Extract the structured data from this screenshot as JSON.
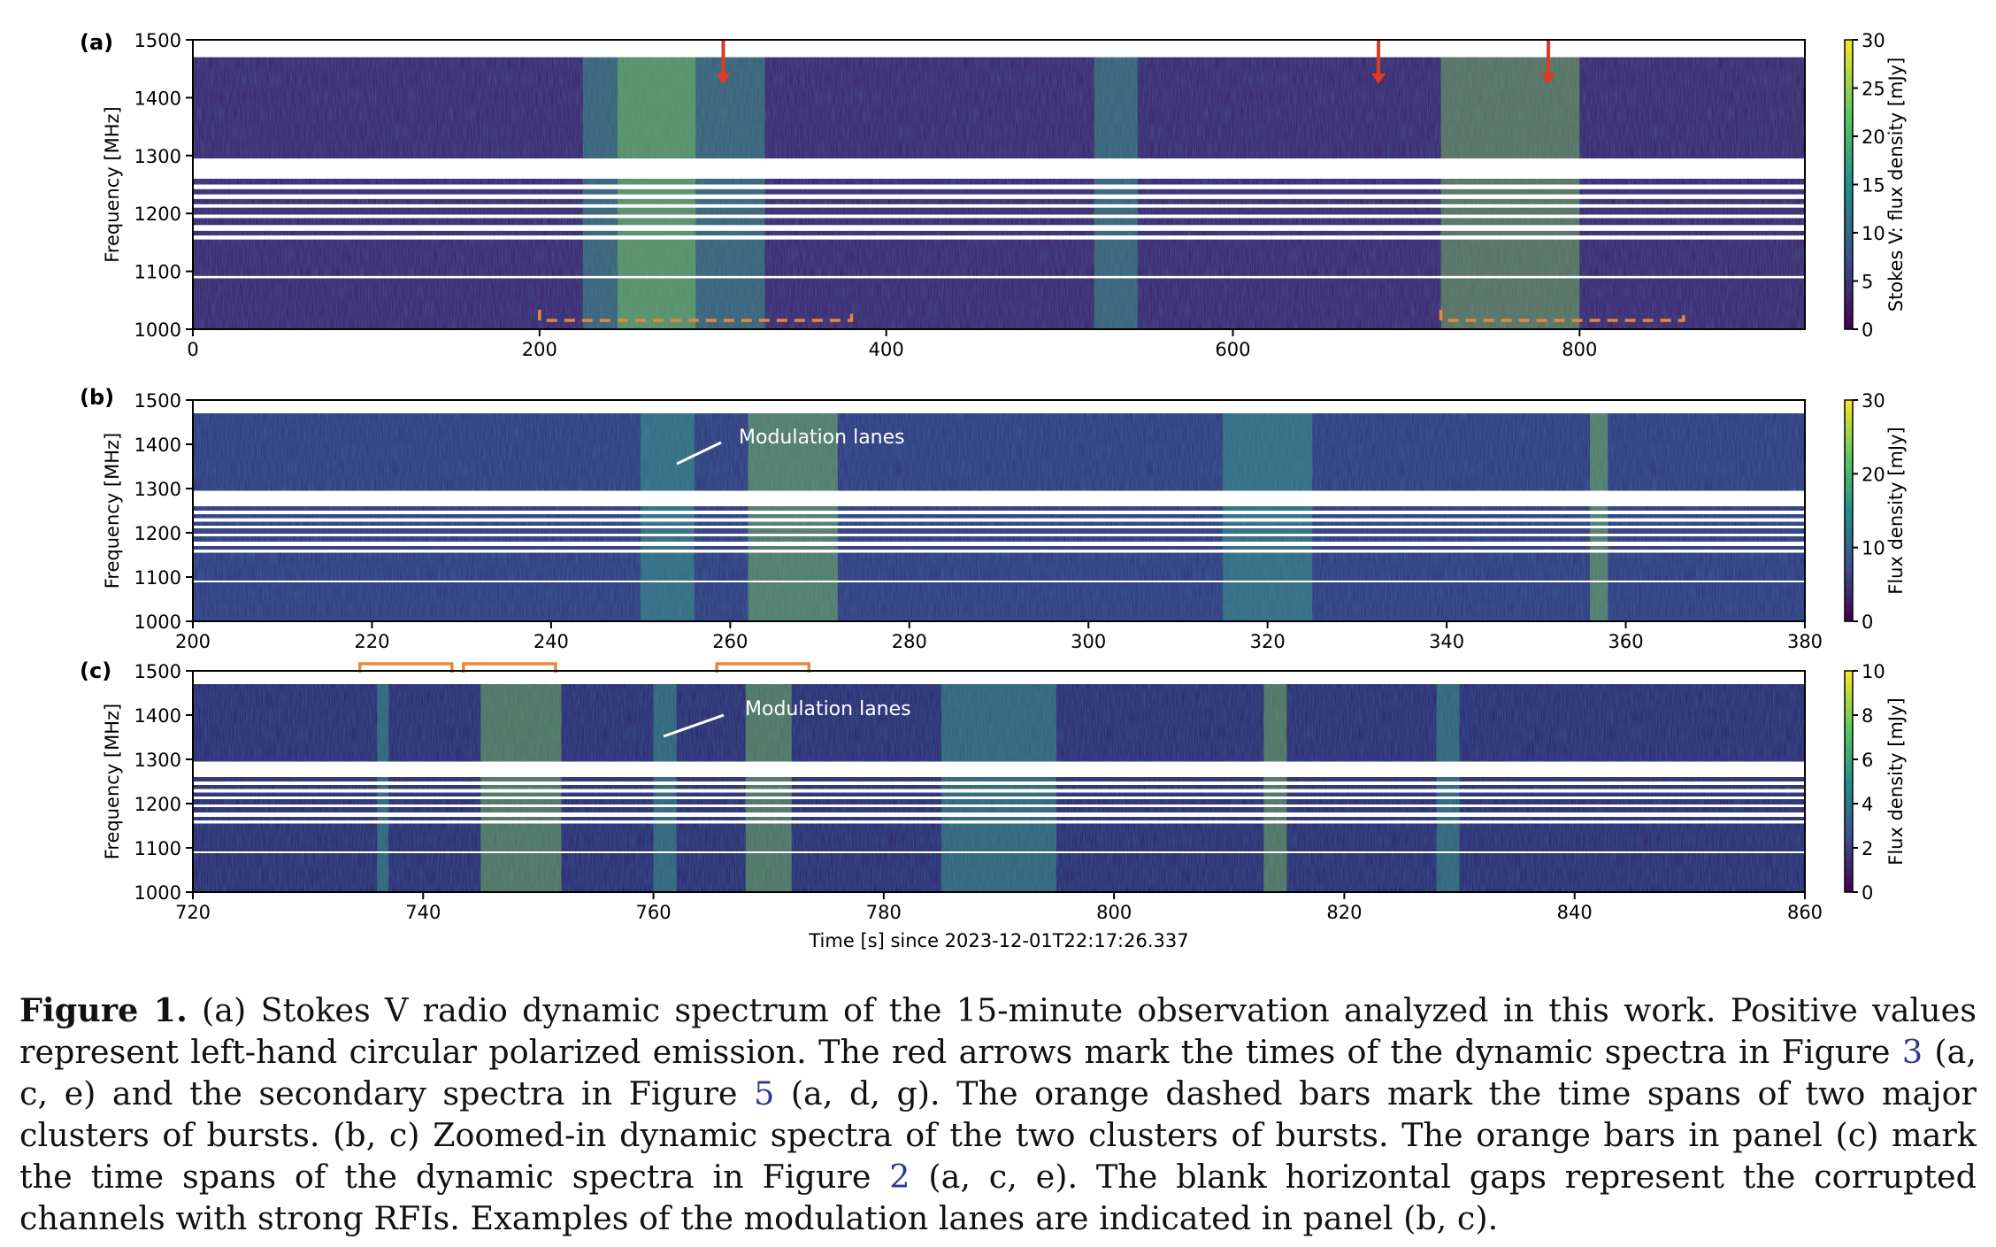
{
  "panels": [
    {
      "label": "(a)",
      "ylabel": "Frequency [MHz]",
      "yticks": [
        "1000",
        "1100",
        "1200",
        "1300",
        "1400",
        "1500"
      ],
      "xticks": [
        "0",
        "200",
        "400",
        "600",
        "800"
      ],
      "xlim": [
        0,
        930
      ],
      "xtick_values": [
        0,
        200,
        400,
        600,
        800
      ],
      "colorbar_label": "Stokes V: flux density [mJy]",
      "colorbar_ticks": [
        "0",
        "5",
        "10",
        "15",
        "20",
        "25",
        "30"
      ],
      "colorbar_values": [
        0,
        5,
        10,
        15,
        20,
        25,
        30
      ],
      "colorbar_max": 30,
      "red_arrows_time_s": [
        306,
        684,
        782
      ],
      "orange_dashed_bars_s": [
        [
          200,
          380
        ],
        [
          720,
          860
        ]
      ],
      "bright_spans_s": [
        [
          225,
          330
        ],
        [
          245,
          290
        ],
        [
          520,
          545
        ],
        [
          720,
          800
        ]
      ]
    },
    {
      "label": "(b)",
      "ylabel": "Frequency [MHz]",
      "yticks": [
        "1000",
        "1100",
        "1200",
        "1300",
        "1400",
        "1500"
      ],
      "xticks": [
        "200",
        "220",
        "240",
        "260",
        "280",
        "300",
        "320",
        "340",
        "360",
        "380"
      ],
      "xlim": [
        200,
        380
      ],
      "xtick_values": [
        200,
        220,
        240,
        260,
        280,
        300,
        320,
        340,
        360,
        380
      ],
      "colorbar_label": "Flux density [mJy]",
      "colorbar_ticks": [
        "0",
        "10",
        "20",
        "30"
      ],
      "colorbar_values": [
        0,
        10,
        20,
        30
      ],
      "colorbar_max": 30,
      "annotation": "Modulation lanes",
      "bright_spans_s": [
        [
          250,
          256
        ],
        [
          262,
          272
        ],
        [
          315,
          325
        ],
        [
          356,
          358
        ]
      ]
    },
    {
      "label": "(c)",
      "ylabel": "Frequency [MHz]",
      "yticks": [
        "1000",
        "1100",
        "1200",
        "1300",
        "1400",
        "1500"
      ],
      "xticks": [
        "720",
        "740",
        "760",
        "780",
        "800",
        "820",
        "840",
        "860"
      ],
      "xlim": [
        720,
        860
      ],
      "xtick_values": [
        720,
        740,
        760,
        780,
        800,
        820,
        840,
        860
      ],
      "colorbar_label": "Flux density [mJy]",
      "colorbar_ticks": [
        "0",
        "2",
        "4",
        "6",
        "8",
        "10"
      ],
      "colorbar_values": [
        0,
        2,
        4,
        6,
        8,
        10
      ],
      "colorbar_max": 10,
      "annotation": "Modulation lanes",
      "orange_bars_s": [
        [
          734.5,
          742.5
        ],
        [
          743.5,
          751.5
        ],
        [
          765.5,
          773.5
        ]
      ],
      "bright_spans_s": [
        [
          736,
          737
        ],
        [
          745,
          752
        ],
        [
          760,
          762
        ],
        [
          768,
          772
        ],
        [
          785,
          795
        ],
        [
          813,
          815
        ],
        [
          828,
          830
        ]
      ],
      "xlabel": "Time [s] since 2023-12-01T22:17:26.337"
    }
  ],
  "rfi_gaps_mhz": [
    [
      1470,
      1500
    ],
    [
      1260,
      1295
    ],
    [
      1242,
      1250
    ],
    [
      1225,
      1233
    ],
    [
      1210,
      1216
    ],
    [
      1192,
      1198
    ],
    [
      1170,
      1180
    ],
    [
      1155,
      1162
    ],
    [
      1088,
      1092
    ]
  ],
  "colors": {
    "background": "#3b1a67",
    "arrow": "#e03a22",
    "orange": "#e8873a",
    "annotation": "#ffffff",
    "viridis": [
      "#440154",
      "#3b528b",
      "#21918c",
      "#5ec962",
      "#fde725"
    ]
  },
  "caption": {
    "label": "Figure 1.",
    "part1": " (a) Stokes V radio dynamic spectrum of the 15-minute observation analyzed in this work. Positive values represent left-hand circular polarized emission. The red arrows mark the times of the dynamic spectra in Figure ",
    "ref1": "3",
    "part2": " (a, c, e) and the secondary spectra in Figure ",
    "ref2": "5",
    "part3": " (a, d, g). The orange dashed bars mark the time spans of two major clusters of bursts. (b, c) Zoomed-in dynamic spectra of the two clusters of bursts. The orange bars in panel (c) mark the time spans of the dynamic spectra in Figure ",
    "ref3": "2",
    "part4": " (a, c, e). The blank horizontal gaps represent the corrupted channels with strong RFIs. Examples of the modulation lanes are indicated in panel (b, c)."
  }
}
